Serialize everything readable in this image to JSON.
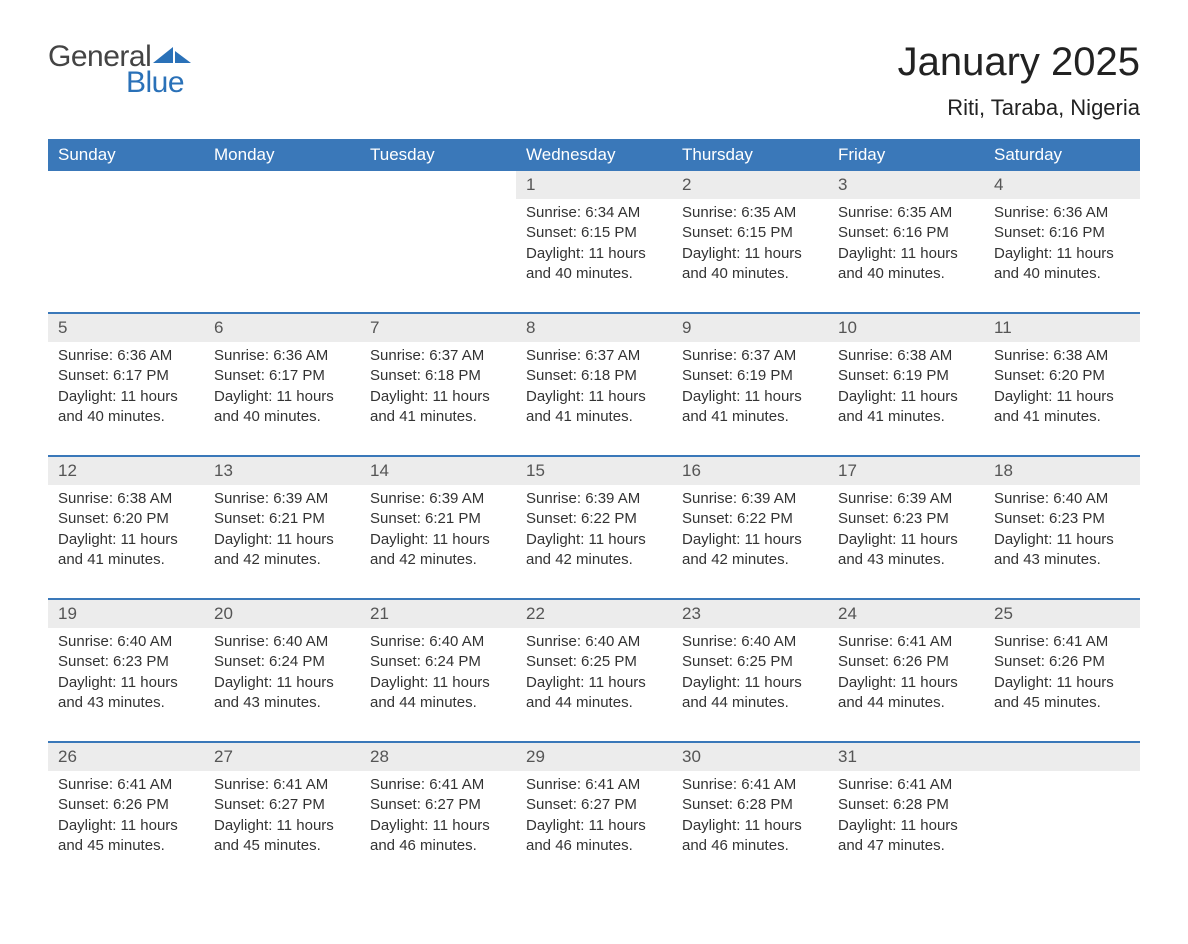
{
  "logo": {
    "text_general": "General",
    "text_blue": "Blue",
    "shape_color": "#2a71b8",
    "general_color": "#444444"
  },
  "title": "January 2025",
  "location": "Riti, Taraba, Nigeria",
  "colors": {
    "header_bg": "#3a78b9",
    "header_text": "#ffffff",
    "daynum_bg": "#ececec",
    "daynum_text": "#555555",
    "body_text": "#333333",
    "week_border": "#3a78b9",
    "page_bg": "#ffffff"
  },
  "fonts": {
    "title_size_pt": 30,
    "location_size_pt": 17,
    "header_size_pt": 13,
    "body_size_pt": 11
  },
  "day_headers": [
    "Sunday",
    "Monday",
    "Tuesday",
    "Wednesday",
    "Thursday",
    "Friday",
    "Saturday"
  ],
  "weeks": [
    [
      null,
      null,
      null,
      {
        "day": "1",
        "sunrise": "6:34 AM",
        "sunset": "6:15 PM",
        "daylight": "11 hours and 40 minutes."
      },
      {
        "day": "2",
        "sunrise": "6:35 AM",
        "sunset": "6:15 PM",
        "daylight": "11 hours and 40 minutes."
      },
      {
        "day": "3",
        "sunrise": "6:35 AM",
        "sunset": "6:16 PM",
        "daylight": "11 hours and 40 minutes."
      },
      {
        "day": "4",
        "sunrise": "6:36 AM",
        "sunset": "6:16 PM",
        "daylight": "11 hours and 40 minutes."
      }
    ],
    [
      {
        "day": "5",
        "sunrise": "6:36 AM",
        "sunset": "6:17 PM",
        "daylight": "11 hours and 40 minutes."
      },
      {
        "day": "6",
        "sunrise": "6:36 AM",
        "sunset": "6:17 PM",
        "daylight": "11 hours and 40 minutes."
      },
      {
        "day": "7",
        "sunrise": "6:37 AM",
        "sunset": "6:18 PM",
        "daylight": "11 hours and 41 minutes."
      },
      {
        "day": "8",
        "sunrise": "6:37 AM",
        "sunset": "6:18 PM",
        "daylight": "11 hours and 41 minutes."
      },
      {
        "day": "9",
        "sunrise": "6:37 AM",
        "sunset": "6:19 PM",
        "daylight": "11 hours and 41 minutes."
      },
      {
        "day": "10",
        "sunrise": "6:38 AM",
        "sunset": "6:19 PM",
        "daylight": "11 hours and 41 minutes."
      },
      {
        "day": "11",
        "sunrise": "6:38 AM",
        "sunset": "6:20 PM",
        "daylight": "11 hours and 41 minutes."
      }
    ],
    [
      {
        "day": "12",
        "sunrise": "6:38 AM",
        "sunset": "6:20 PM",
        "daylight": "11 hours and 41 minutes."
      },
      {
        "day": "13",
        "sunrise": "6:39 AM",
        "sunset": "6:21 PM",
        "daylight": "11 hours and 42 minutes."
      },
      {
        "day": "14",
        "sunrise": "6:39 AM",
        "sunset": "6:21 PM",
        "daylight": "11 hours and 42 minutes."
      },
      {
        "day": "15",
        "sunrise": "6:39 AM",
        "sunset": "6:22 PM",
        "daylight": "11 hours and 42 minutes."
      },
      {
        "day": "16",
        "sunrise": "6:39 AM",
        "sunset": "6:22 PM",
        "daylight": "11 hours and 42 minutes."
      },
      {
        "day": "17",
        "sunrise": "6:39 AM",
        "sunset": "6:23 PM",
        "daylight": "11 hours and 43 minutes."
      },
      {
        "day": "18",
        "sunrise": "6:40 AM",
        "sunset": "6:23 PM",
        "daylight": "11 hours and 43 minutes."
      }
    ],
    [
      {
        "day": "19",
        "sunrise": "6:40 AM",
        "sunset": "6:23 PM",
        "daylight": "11 hours and 43 minutes."
      },
      {
        "day": "20",
        "sunrise": "6:40 AM",
        "sunset": "6:24 PM",
        "daylight": "11 hours and 43 minutes."
      },
      {
        "day": "21",
        "sunrise": "6:40 AM",
        "sunset": "6:24 PM",
        "daylight": "11 hours and 44 minutes."
      },
      {
        "day": "22",
        "sunrise": "6:40 AM",
        "sunset": "6:25 PM",
        "daylight": "11 hours and 44 minutes."
      },
      {
        "day": "23",
        "sunrise": "6:40 AM",
        "sunset": "6:25 PM",
        "daylight": "11 hours and 44 minutes."
      },
      {
        "day": "24",
        "sunrise": "6:41 AM",
        "sunset": "6:26 PM",
        "daylight": "11 hours and 44 minutes."
      },
      {
        "day": "25",
        "sunrise": "6:41 AM",
        "sunset": "6:26 PM",
        "daylight": "11 hours and 45 minutes."
      }
    ],
    [
      {
        "day": "26",
        "sunrise": "6:41 AM",
        "sunset": "6:26 PM",
        "daylight": "11 hours and 45 minutes."
      },
      {
        "day": "27",
        "sunrise": "6:41 AM",
        "sunset": "6:27 PM",
        "daylight": "11 hours and 45 minutes."
      },
      {
        "day": "28",
        "sunrise": "6:41 AM",
        "sunset": "6:27 PM",
        "daylight": "11 hours and 46 minutes."
      },
      {
        "day": "29",
        "sunrise": "6:41 AM",
        "sunset": "6:27 PM",
        "daylight": "11 hours and 46 minutes."
      },
      {
        "day": "30",
        "sunrise": "6:41 AM",
        "sunset": "6:28 PM",
        "daylight": "11 hours and 46 minutes."
      },
      {
        "day": "31",
        "sunrise": "6:41 AM",
        "sunset": "6:28 PM",
        "daylight": "11 hours and 47 minutes."
      },
      null
    ]
  ],
  "labels": {
    "sunrise": "Sunrise: ",
    "sunset": "Sunset: ",
    "daylight": "Daylight: "
  }
}
